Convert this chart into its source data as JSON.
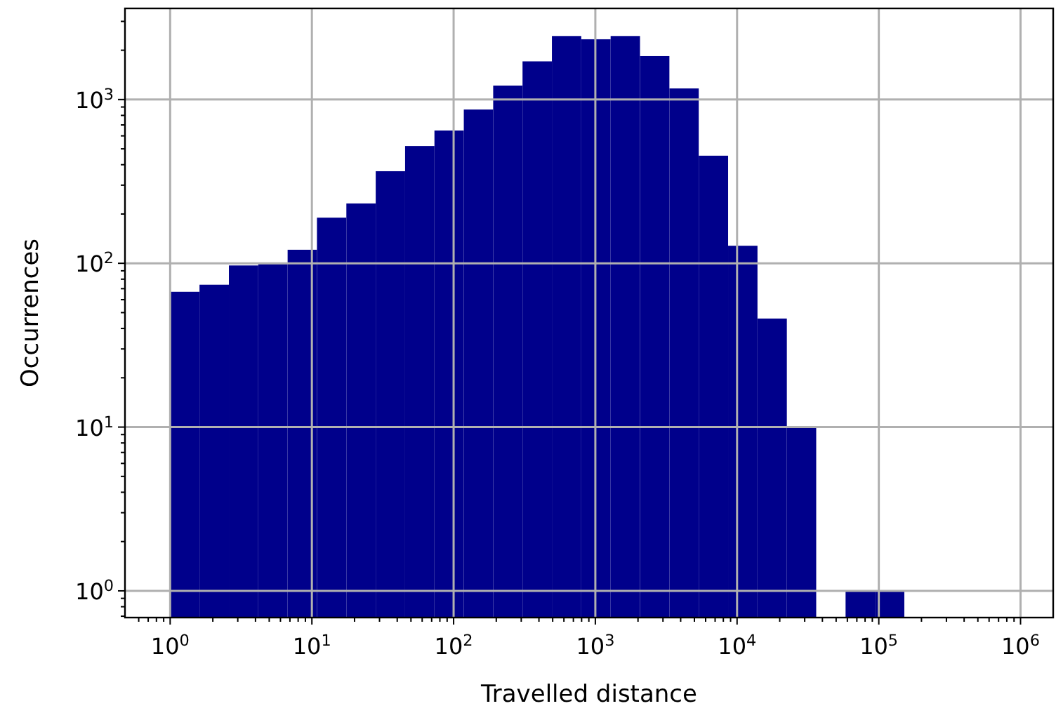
{
  "chart_data": {
    "type": "histogram",
    "xlabel": "Travelled distance",
    "ylabel": "Occurrences",
    "log": "xy",
    "grid": true,
    "color": "#00008b",
    "bins": [
      1,
      1.611,
      2.597,
      4.184,
      6.742,
      10.86,
      17.51,
      28.21,
      45.46,
      73.24,
      118,
      190.2,
      306.4,
      493.8,
      795.6,
      1282,
      2066,
      3330,
      5365,
      8646,
      13930,
      22450,
      36170,
      58290,
      93930,
      151400
    ],
    "values": [
      67,
      74,
      97,
      99,
      121,
      190,
      232,
      365,
      520,
      647,
      869,
      1217,
      1710,
      2443,
      2333,
      2443,
      1841,
      1169,
      454,
      128,
      46,
      10,
      null,
      1,
      1
    ],
    "xlim": [
      0.48,
      1700000
    ],
    "ylim": [
      0.687,
      3600
    ],
    "xticks": [
      {
        "value": 0.6,
        "label": null
      },
      {
        "value": 0.7,
        "label": null
      },
      {
        "value": 0.8,
        "label": null
      },
      {
        "value": 0.9,
        "label": null
      },
      {
        "value": 1,
        "label": "10$^{0}$"
      },
      {
        "value": 2,
        "label": null
      },
      {
        "value": 3,
        "label": null
      },
      {
        "value": 4,
        "label": null
      },
      {
        "value": 5,
        "label": null
      },
      {
        "value": 6,
        "label": null
      },
      {
        "value": 7,
        "label": null
      },
      {
        "value": 8,
        "label": null
      },
      {
        "value": 9,
        "label": null
      },
      {
        "value": 10,
        "label": "10$^{1}$"
      },
      {
        "value": 20,
        "label": null
      },
      {
        "value": 30,
        "label": null
      },
      {
        "value": 40,
        "label": null
      },
      {
        "value": 50,
        "label": null
      },
      {
        "value": 60,
        "label": null
      },
      {
        "value": 70,
        "label": null
      },
      {
        "value": 80,
        "label": null
      },
      {
        "value": 90,
        "label": null
      },
      {
        "value": 100,
        "label": "10$^{2}$"
      },
      {
        "value": 200,
        "label": null
      },
      {
        "value": 300,
        "label": null
      },
      {
        "value": 400,
        "label": null
      },
      {
        "value": 500,
        "label": null
      },
      {
        "value": 600,
        "label": null
      },
      {
        "value": 700,
        "label": null
      },
      {
        "value": 800,
        "label": null
      },
      {
        "value": 900,
        "label": null
      },
      {
        "value": 1000,
        "label": "10$^{3}$"
      },
      {
        "value": 2000,
        "label": null
      },
      {
        "value": 3000,
        "label": null
      },
      {
        "value": 4000,
        "label": null
      },
      {
        "value": 5000,
        "label": null
      },
      {
        "value": 6000,
        "label": null
      },
      {
        "value": 7000,
        "label": null
      },
      {
        "value": 8000,
        "label": null
      },
      {
        "value": 9000,
        "label": null
      },
      {
        "value": 10000,
        "label": "10$^{4}$"
      },
      {
        "value": 20000,
        "label": null
      },
      {
        "value": 30000,
        "label": null
      },
      {
        "value": 40000,
        "label": null
      },
      {
        "value": 50000,
        "label": null
      },
      {
        "value": 60000,
        "label": null
      },
      {
        "value": 70000,
        "label": null
      },
      {
        "value": 80000,
        "label": null
      },
      {
        "value": 90000,
        "label": null
      },
      {
        "value": 100000,
        "label": "10$^{5}$"
      },
      {
        "value": 200000,
        "label": null
      },
      {
        "value": 300000,
        "label": null
      },
      {
        "value": 400000,
        "label": null
      },
      {
        "value": 500000,
        "label": null
      },
      {
        "value": 600000,
        "label": null
      },
      {
        "value": 700000,
        "label": null
      },
      {
        "value": 800000,
        "label": null
      },
      {
        "value": 900000,
        "label": null
      },
      {
        "value": 1000000,
        "label": "10$^{6}$"
      }
    ],
    "yticks": [
      {
        "value": 0.7,
        "label": null
      },
      {
        "value": 0.8,
        "label": null
      },
      {
        "value": 0.9,
        "label": null
      },
      {
        "value": 1,
        "label": "10$^{0}$"
      },
      {
        "value": 2,
        "label": null
      },
      {
        "value": 3,
        "label": null
      },
      {
        "value": 4,
        "label": null
      },
      {
        "value": 5,
        "label": null
      },
      {
        "value": 6,
        "label": null
      },
      {
        "value": 7,
        "label": null
      },
      {
        "value": 8,
        "label": null
      },
      {
        "value": 9,
        "label": null
      },
      {
        "value": 10,
        "label": "10$^{1}$"
      },
      {
        "value": 20,
        "label": null
      },
      {
        "value": 30,
        "label": null
      },
      {
        "value": 40,
        "label": null
      },
      {
        "value": 50,
        "label": null
      },
      {
        "value": 60,
        "label": null
      },
      {
        "value": 70,
        "label": null
      },
      {
        "value": 80,
        "label": null
      },
      {
        "value": 90,
        "label": null
      },
      {
        "value": 100,
        "label": "10$^{2}$"
      },
      {
        "value": 200,
        "label": null
      },
      {
        "value": 300,
        "label": null
      },
      {
        "value": 400,
        "label": null
      },
      {
        "value": 500,
        "label": null
      },
      {
        "value": 600,
        "label": null
      },
      {
        "value": 700,
        "label": null
      },
      {
        "value": 800,
        "label": null
      },
      {
        "value": 900,
        "label": null
      },
      {
        "value": 1000,
        "label": "10$^{3}$"
      },
      {
        "value": 2000,
        "label": null
      },
      {
        "value": 3000,
        "label": null
      }
    ]
  }
}
